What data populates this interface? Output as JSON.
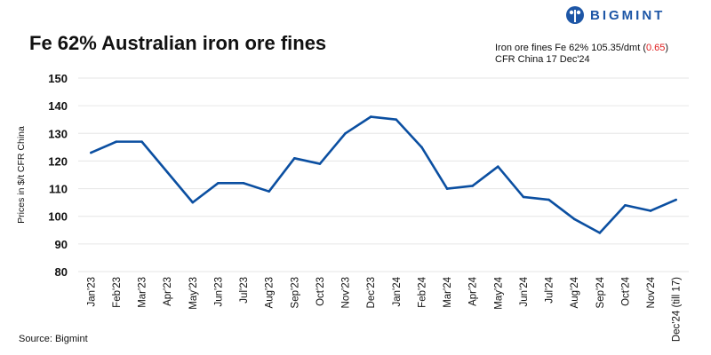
{
  "logo": {
    "text": "BIGMINT"
  },
  "info": {
    "line1_prefix": "Iron ore fines Fe 62% 105.35/dmt (",
    "change": "0.65",
    "line1_suffix": ")",
    "line2": "CFR China 17 Dec'24"
  },
  "source": "Source: Bigmint",
  "colors": {
    "line": "#0b4fa1",
    "grid": "#e6e6e6",
    "change": "#e02020",
    "brand": "#1d56a6"
  },
  "chart_data": {
    "type": "line",
    "title": "Fe 62% Australian iron ore fines",
    "xlabel": "",
    "ylabel": "Prices in $/t CFR China",
    "ylim": [
      80,
      150
    ],
    "yticks": [
      80,
      90,
      100,
      110,
      120,
      130,
      140,
      150
    ],
    "grid": true,
    "categories": [
      "Jan'23",
      "Feb'23",
      "Mar'23",
      "Apr'23",
      "May'23",
      "Jun'23",
      "Jul'23",
      "Aug'23",
      "Sep'23",
      "Oct'23",
      "Nov'23",
      "Dec'23",
      "Jan'24",
      "Feb'24",
      "Mar'24",
      "Apr'24",
      "May'24",
      "Jun'24",
      "Jul'24",
      "Aug'24",
      "Sep'24",
      "Oct'24",
      "Nov'24",
      "Dec'24 (till 17)"
    ],
    "series": [
      {
        "name": "Fe 62% Australian iron ore fines",
        "values": [
          123,
          127,
          127,
          116,
          105,
          112,
          112,
          109,
          121,
          119,
          130,
          136,
          135,
          125,
          110,
          111,
          118,
          107,
          106,
          99,
          94,
          104,
          102,
          106
        ]
      }
    ]
  }
}
